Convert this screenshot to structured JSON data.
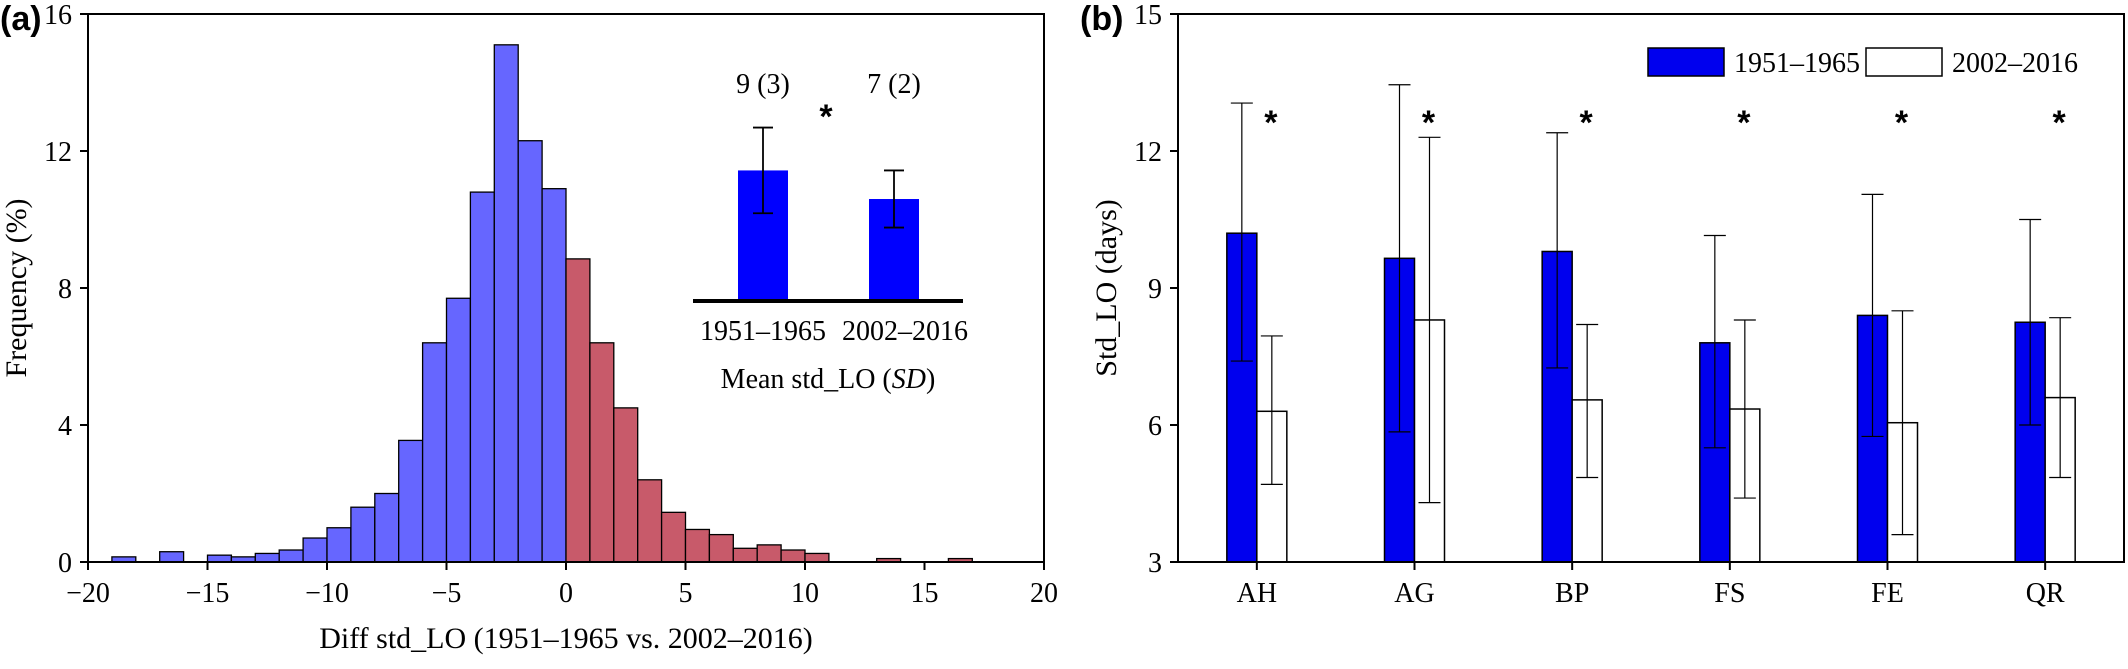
{
  "chart_data": [
    {
      "type": "bar",
      "panel_label": "(a)",
      "xlabel": "Diff std_LO (1951–1965 vs. 2002–2016)",
      "ylabel": "Frequency (%)",
      "xlim": [
        -20,
        20
      ],
      "ylim": [
        0,
        16
      ],
      "xticks": [
        "−20",
        "−15",
        "−10",
        "−5",
        "0",
        "5",
        "10",
        "15",
        "20"
      ],
      "yticks": [
        "0",
        "4",
        "8",
        "12",
        "16"
      ],
      "bin_width": 1,
      "colors": {
        "negative": "#6666ff",
        "positive": "#c85a6a"
      },
      "bins": [
        {
          "x0": -19,
          "v": 0.15
        },
        {
          "x0": -18,
          "v": 0
        },
        {
          "x0": -17,
          "v": 0.3
        },
        {
          "x0": -16,
          "v": 0
        },
        {
          "x0": -15,
          "v": 0.2
        },
        {
          "x0": -14,
          "v": 0.15
        },
        {
          "x0": -13,
          "v": 0.25
        },
        {
          "x0": -12,
          "v": 0.35
        },
        {
          "x0": -11,
          "v": 0.7
        },
        {
          "x0": -10,
          "v": 1.0
        },
        {
          "x0": -9,
          "v": 1.6
        },
        {
          "x0": -8,
          "v": 2.0
        },
        {
          "x0": -7,
          "v": 3.55
        },
        {
          "x0": -6,
          "v": 6.4
        },
        {
          "x0": -5,
          "v": 7.7
        },
        {
          "x0": -4,
          "v": 10.8
        },
        {
          "x0": -3,
          "v": 15.1
        },
        {
          "x0": -2,
          "v": 12.3
        },
        {
          "x0": -1,
          "v": 10.9
        },
        {
          "x0": 0,
          "v": 8.85
        },
        {
          "x0": 1,
          "v": 6.4
        },
        {
          "x0": 2,
          "v": 4.5
        },
        {
          "x0": 3,
          "v": 2.4
        },
        {
          "x0": 4,
          "v": 1.45
        },
        {
          "x0": 5,
          "v": 0.95
        },
        {
          "x0": 6,
          "v": 0.8
        },
        {
          "x0": 7,
          "v": 0.4
        },
        {
          "x0": 8,
          "v": 0.5
        },
        {
          "x0": 9,
          "v": 0.35
        },
        {
          "x0": 10,
          "v": 0.25
        },
        {
          "x0": 11,
          "v": 0
        },
        {
          "x0": 12,
          "v": 0
        },
        {
          "x0": 13,
          "v": 0.1
        },
        {
          "x0": 14,
          "v": 0
        },
        {
          "x0": 15,
          "v": 0
        },
        {
          "x0": 16,
          "v": 0.1
        }
      ],
      "inset": {
        "type": "bar",
        "categories": [
          "1951–1965",
          "2002–2016"
        ],
        "labels_above": [
          "9 (3)",
          "7 (2)"
        ],
        "significance": "*",
        "xlabel_prefix": "Mean std_LO (",
        "xlabel_italic": "SD",
        "xlabel_suffix": ")",
        "values": [
          9,
          7
        ],
        "sd": [
          3,
          2
        ],
        "ylim": [
          0,
          14
        ],
        "color": "#0000ff"
      }
    },
    {
      "type": "bar",
      "panel_label": "(b)",
      "categories": [
        "AH",
        "AG",
        "BP",
        "FS",
        "FE",
        "QR"
      ],
      "ylabel": "Std_LO (days)",
      "ylim": [
        3,
        15
      ],
      "yticks": [
        "3",
        "6",
        "9",
        "12",
        "15"
      ],
      "significance": [
        "*",
        "*",
        "*",
        "*",
        "*",
        "*"
      ],
      "legend_position": "top-right",
      "series": [
        {
          "name": "1951–1965",
          "color": "#0000ee",
          "values": [
            10.2,
            9.65,
            9.8,
            7.8,
            8.4,
            8.25
          ],
          "upper": [
            13.05,
            13.45,
            12.4,
            10.15,
            11.05,
            10.5
          ],
          "lower": [
            7.4,
            5.85,
            7.25,
            5.5,
            5.75,
            6.0
          ]
        },
        {
          "name": "2002–2016",
          "color": "#ffffff",
          "values": [
            6.3,
            8.3,
            6.55,
            6.35,
            6.05,
            6.6
          ],
          "upper": [
            7.95,
            12.3,
            8.2,
            8.3,
            8.5,
            8.35
          ],
          "lower": [
            4.7,
            4.3,
            4.85,
            4.4,
            3.6,
            4.85
          ]
        }
      ]
    }
  ]
}
